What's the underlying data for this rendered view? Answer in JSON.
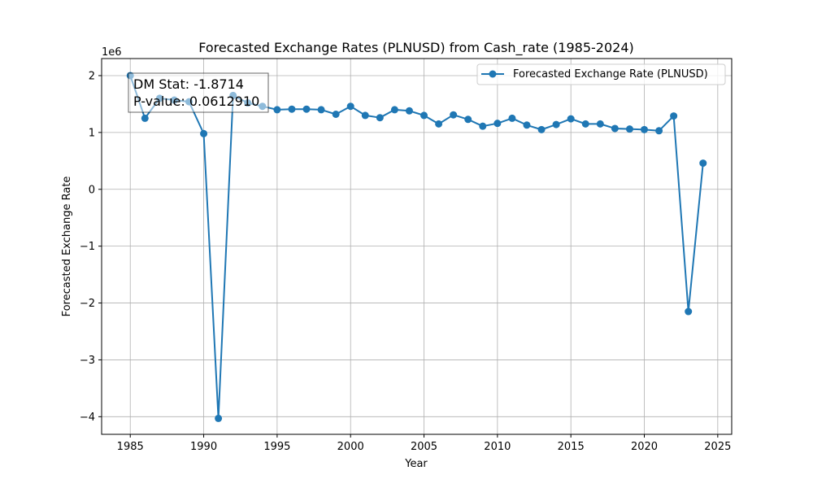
{
  "chart_data": {
    "type": "line",
    "title": "Forecasted Exchange Rates (PLNUSD) from Cash_rate (1985-2024)",
    "xlabel": "Year",
    "ylabel": "Forecasted Exchange Rate",
    "y_offset_label": "1e6",
    "xlim": [
      1983.05,
      1925.95
    ],
    "ylim": [
      -4.31,
      2.3
    ],
    "x_ticks": [
      1985,
      1990,
      1995,
      2000,
      2005,
      2010,
      2015,
      2020,
      2025
    ],
    "x_tick_labels": [
      "1985",
      "1990",
      "1995",
      "2000",
      "2005",
      "2010",
      "2015",
      "2020",
      "2025"
    ],
    "y_ticks": [
      -4,
      -3,
      -2,
      -1,
      0,
      1,
      2
    ],
    "y_tick_labels": [
      "−4",
      "−3",
      "−2",
      "−1",
      "0",
      "1",
      "2"
    ],
    "grid": true,
    "legend_position": "top-right",
    "series": [
      {
        "name": "Forecasted Exchange Rate (PLNUSD)",
        "color": "#1f77b4",
        "marker": "circle",
        "x": [
          1985,
          1986,
          1987,
          1988,
          1989,
          1990,
          1991,
          1992,
          1993,
          1994,
          1995,
          1996,
          1997,
          1998,
          1999,
          2000,
          2001,
          2002,
          2003,
          2004,
          2005,
          2006,
          2007,
          2008,
          2009,
          2010,
          2011,
          2012,
          2013,
          2014,
          2015,
          2016,
          2017,
          2018,
          2019,
          2020,
          2021,
          2022,
          2023,
          2024
        ],
        "y": [
          2.0,
          1.25,
          1.6,
          1.57,
          1.54,
          0.98,
          -4.03,
          1.65,
          1.52,
          1.46,
          1.4,
          1.41,
          1.41,
          1.4,
          1.32,
          1.46,
          1.3,
          1.26,
          1.4,
          1.38,
          1.3,
          1.15,
          1.31,
          1.23,
          1.11,
          1.16,
          1.25,
          1.13,
          1.05,
          1.14,
          1.24,
          1.15,
          1.15,
          1.07,
          1.06,
          1.05,
          1.03,
          1.29,
          -2.15,
          0.46
        ]
      }
    ],
    "annotation": {
      "lines": [
        "DM Stat: -1.8714",
        "P-value: 0.0612910"
      ]
    }
  }
}
